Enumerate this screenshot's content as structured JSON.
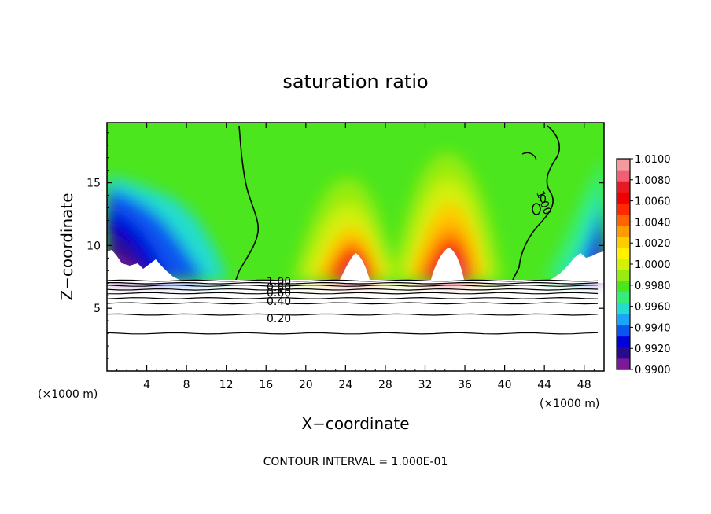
{
  "chart_data": {
    "type": "heatmap",
    "title": "saturation ratio",
    "xlabel": "X−coordinate",
    "ylabel": "Z−coordinate",
    "x_unit_left": "(×1000 m)",
    "x_unit_right": "(×1000 m)",
    "xlim": [
      0,
      50
    ],
    "ylim": [
      0,
      19.8
    ],
    "x_ticks": [
      4,
      8,
      12,
      16,
      20,
      24,
      28,
      32,
      36,
      40,
      44,
      48
    ],
    "x_tick_labels": [
      "4",
      "8",
      "12",
      "16",
      "20",
      "24",
      "28",
      "32",
      "36",
      "40",
      "44",
      "48"
    ],
    "y_ticks": [
      5,
      10,
      15
    ],
    "y_tick_labels": [
      "5",
      "10",
      "15"
    ],
    "colorbar": {
      "min": 0.99,
      "max": 1.01,
      "labels": [
        "1.0100",
        "1.0080",
        "1.0060",
        "1.0040",
        "1.0020",
        "1.0000",
        "0.9980",
        "0.9960",
        "0.9940",
        "0.9920",
        "0.9900"
      ],
      "colors": [
        "#7a1a9a",
        "#2a0a8c",
        "#0000d8",
        "#0a55f0",
        "#1aa6f8",
        "#22ddd0",
        "#35ee7a",
        "#4ce61e",
        "#96ec10",
        "#d2f008",
        "#fff200",
        "#ffcc00",
        "#ff9c00",
        "#ff6400",
        "#ff2a00",
        "#f00000",
        "#e81828",
        "#f06070",
        "#f29aa0"
      ]
    },
    "contour_labels": [
      "1.00",
      "0.80",
      "0.60",
      "0.40",
      "0.20",
      "1.00",
      "0"
    ],
    "flat_contour_levels_z": [
      7.2,
      7.0,
      6.8,
      6.5,
      6.2,
      5.8,
      5.4,
      4.5,
      3.0
    ],
    "annotation": "CONTOUR INTERVAL = 1.000E-01"
  }
}
